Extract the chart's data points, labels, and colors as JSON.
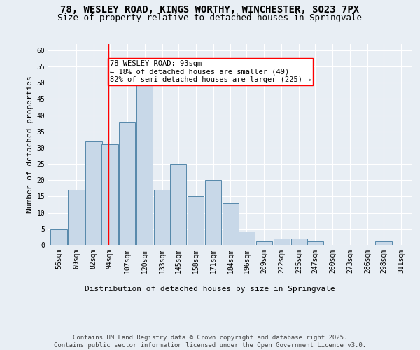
{
  "title_line1": "78, WESLEY ROAD, KINGS WORTHY, WINCHESTER, SO23 7PX",
  "title_line2": "Size of property relative to detached houses in Springvale",
  "xlabel": "Distribution of detached houses by size in Springvale",
  "ylabel": "Number of detached properties",
  "bins": [
    56,
    69,
    82,
    94,
    107,
    120,
    133,
    145,
    158,
    171,
    184,
    196,
    209,
    222,
    235,
    247,
    260,
    273,
    286,
    298,
    311
  ],
  "values": [
    5,
    17,
    32,
    31,
    38,
    50,
    17,
    25,
    15,
    20,
    13,
    4,
    1,
    2,
    2,
    1,
    0,
    0,
    0,
    1,
    0
  ],
  "bar_color": "#c8d8e8",
  "bar_edge_color": "#5588aa",
  "red_line_x": 93,
  "annotation_text": "78 WESLEY ROAD: 93sqm\n← 18% of detached houses are smaller (49)\n82% of semi-detached houses are larger (225) →",
  "annotation_box_color": "white",
  "annotation_box_edge_color": "red",
  "ylim": [
    0,
    62
  ],
  "yticks": [
    0,
    5,
    10,
    15,
    20,
    25,
    30,
    35,
    40,
    45,
    50,
    55,
    60
  ],
  "background_color": "#e8eef4",
  "plot_background_color": "#e8eef4",
  "footer_text": "Contains HM Land Registry data © Crown copyright and database right 2025.\nContains public sector information licensed under the Open Government Licence v3.0.",
  "title_fontsize": 10,
  "subtitle_fontsize": 9,
  "axis_label_fontsize": 8,
  "tick_fontsize": 7,
  "annotation_fontsize": 7.5,
  "footer_fontsize": 6.5
}
